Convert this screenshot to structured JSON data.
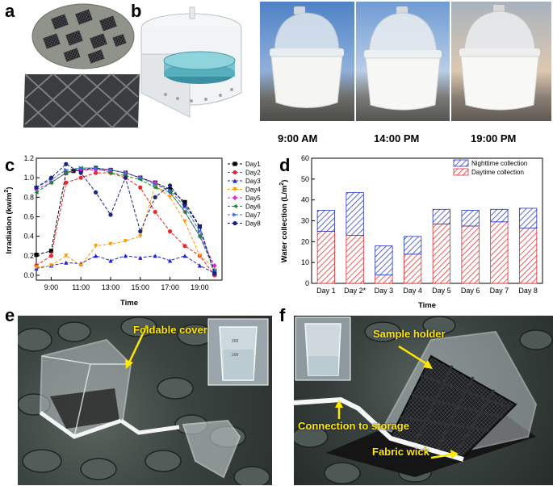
{
  "panels": {
    "a": "a",
    "b": "b",
    "c": "c",
    "d": "d",
    "e": "e",
    "f": "f"
  },
  "panel_b": {
    "time_labels": [
      "9:00 AM",
      "14:00 PM",
      "19:00 PM"
    ]
  },
  "panel_e": {
    "annotation": "Foldable cover",
    "inset_beaker_marks": [
      "200",
      "100"
    ]
  },
  "panel_f": {
    "annotations": [
      "Sample holder",
      "Connection to storage",
      "Fabric wick"
    ]
  },
  "chart_data": [
    {
      "id": "c",
      "type": "line",
      "xlabel": "Time",
      "ylabel": "Irradiation (kw/m²)",
      "xlim": [
        8,
        20.5
      ],
      "ylim": [
        -0.05,
        1.2
      ],
      "xticks": [
        "9:00",
        "11:00",
        "13:00",
        "15:00",
        "17:00",
        "19:00"
      ],
      "yticks": [
        "0.0",
        "0.2",
        "0.4",
        "0.6",
        "0.8",
        "1.0",
        "1.2"
      ],
      "legend_position": "top-right",
      "series": [
        {
          "name": "Day1",
          "color": "#000000",
          "marker": "square",
          "x": [
            8,
            9,
            10,
            10.5,
            11,
            12,
            13,
            14,
            15,
            16,
            17,
            18,
            19,
            20
          ],
          "y": [
            0.21,
            0.25,
            1.05,
            1.07,
            1.08,
            1.1,
            1.08,
            1.05,
            1.0,
            0.95,
            0.88,
            0.75,
            0.5,
            0.01
          ]
        },
        {
          "name": "Day2",
          "color": "#e8282b",
          "marker": "circle",
          "x": [
            8,
            9,
            10,
            11,
            12,
            13,
            14,
            15,
            16,
            17,
            18,
            19,
            20
          ],
          "y": [
            0.1,
            0.2,
            0.95,
            1.0,
            1.05,
            1.05,
            1.0,
            0.9,
            0.65,
            0.45,
            0.3,
            0.2,
            0.0
          ]
        },
        {
          "name": "Day3",
          "color": "#2222cc",
          "marker": "triangle-up",
          "x": [
            8,
            9,
            10,
            11,
            12,
            13,
            14,
            15,
            16,
            17,
            18,
            19,
            20
          ],
          "y": [
            0.07,
            0.1,
            0.13,
            0.12,
            0.2,
            0.15,
            0.2,
            0.18,
            0.2,
            0.15,
            0.2,
            0.1,
            0.02
          ]
        },
        {
          "name": "Day4",
          "color": "#ff9900",
          "marker": "triangle-down",
          "x": [
            8,
            9,
            10,
            11,
            12,
            13,
            14,
            15,
            16,
            17,
            18,
            19,
            20
          ],
          "y": [
            0.08,
            0.1,
            0.2,
            0.1,
            0.3,
            0.32,
            0.35,
            0.4,
            0.92,
            0.8,
            0.55,
            0.2,
            0.08
          ]
        },
        {
          "name": "Day5",
          "color": "#e020e0",
          "marker": "diamond",
          "x": [
            8,
            9,
            10,
            11,
            12,
            13,
            14,
            15,
            16,
            17,
            18,
            19,
            20
          ],
          "y": [
            0.88,
            0.95,
            1.05,
            1.08,
            1.08,
            1.08,
            1.05,
            1.0,
            0.95,
            0.85,
            0.65,
            0.4,
            0.1
          ]
        },
        {
          "name": "Day6",
          "color": "#0a8f2a",
          "marker": "triangle-left",
          "x": [
            8,
            9,
            10,
            11,
            12,
            13,
            14,
            15,
            16,
            17,
            18,
            19,
            20
          ],
          "y": [
            0.85,
            0.95,
            1.05,
            1.1,
            1.1,
            1.05,
            1.02,
            0.98,
            0.9,
            0.85,
            0.65,
            0.4,
            0.05
          ]
        },
        {
          "name": "Day7",
          "color": "#3a6ed8",
          "marker": "triangle-right",
          "x": [
            8,
            9,
            10,
            11,
            12,
            13,
            14,
            15,
            16,
            17,
            18,
            19,
            20
          ],
          "y": [
            0.9,
            0.98,
            1.08,
            1.1,
            1.1,
            1.08,
            1.05,
            1.0,
            0.93,
            0.87,
            0.7,
            0.45,
            0.05
          ]
        },
        {
          "name": "Day8",
          "color": "#1a237e",
          "marker": "circle",
          "x": [
            8,
            9,
            10,
            11,
            12,
            13,
            14,
            15,
            16,
            17,
            18,
            19,
            20
          ],
          "y": [
            0.9,
            1.0,
            1.14,
            1.05,
            0.85,
            0.62,
            1.0,
            0.45,
            0.8,
            0.92,
            0.72,
            0.5,
            0.02
          ]
        }
      ]
    },
    {
      "id": "d",
      "type": "bar",
      "xlabel": "Time",
      "ylabel": "Water collection (L/m²)",
      "ylim": [
        0,
        60
      ],
      "yticks": [
        "0",
        "10",
        "20",
        "30",
        "40",
        "50",
        "60"
      ],
      "categories": [
        "Day 1",
        "Day 2*",
        "Day 3",
        "Day 4",
        "Day 5",
        "Day 6",
        "Day 7",
        "Day 8"
      ],
      "legend_position": "top-right",
      "stacked": true,
      "series": [
        {
          "name": "Daytime collection",
          "color": "#e8282b",
          "hatch": "diagonal",
          "values": [
            25,
            23,
            4,
            14,
            28.5,
            27.5,
            29.5,
            26.5
          ]
        },
        {
          "name": "Nighttime collection",
          "color": "#2233cc",
          "hatch": "diagonal",
          "values": [
            10,
            20.5,
            14,
            8.5,
            7,
            7.5,
            6,
            9.5
          ]
        }
      ]
    }
  ]
}
